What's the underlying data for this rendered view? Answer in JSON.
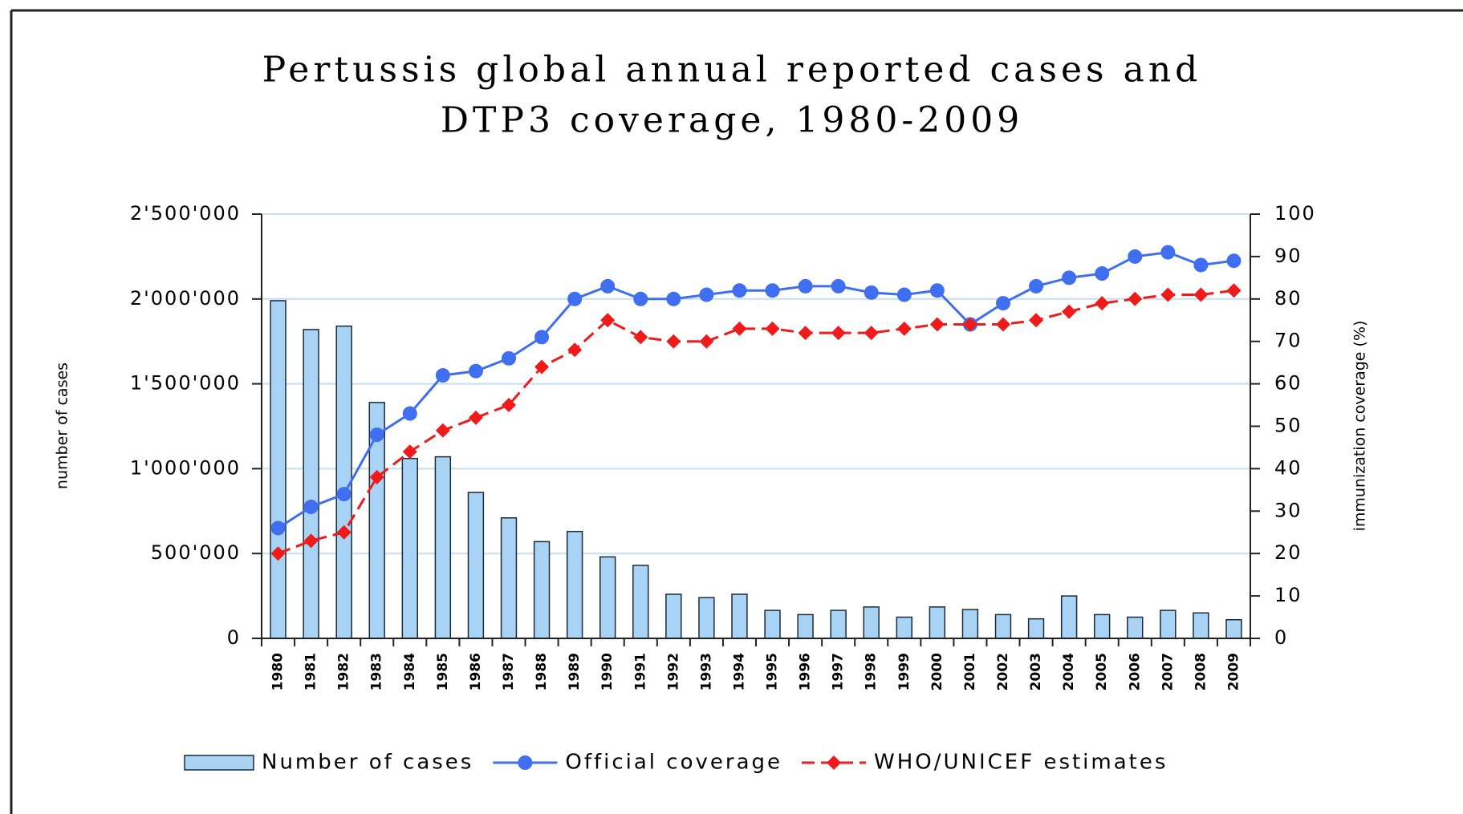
{
  "chart_data": {
    "type": "bar-line",
    "title": [
      "Pertussis global annual reported cases and",
      "DTP3 coverage, 1980-2009"
    ],
    "ylabel": "number of cases",
    "y2label": "immunization coverage (%)",
    "categories": [
      "1980",
      "1981",
      "1982",
      "1983",
      "1984",
      "1985",
      "1986",
      "1987",
      "1988",
      "1989",
      "1990",
      "1991",
      "1992",
      "1993",
      "1994",
      "1995",
      "1996",
      "1997",
      "1998",
      "1999",
      "2000",
      "2001",
      "2002",
      "2003",
      "2004",
      "2005",
      "2006",
      "2007",
      "2008",
      "2009"
    ],
    "series": [
      {
        "name": "Number of cases",
        "type": "bar",
        "axis": "y",
        "color": "#a9d3f5",
        "values": [
          1990000,
          1820000,
          1840000,
          1390000,
          1060000,
          1070000,
          860000,
          710000,
          570000,
          630000,
          480000,
          430000,
          260000,
          240000,
          260000,
          165000,
          140000,
          165000,
          185000,
          125000,
          185000,
          170000,
          140000,
          115000,
          250000,
          140000,
          125000,
          165000,
          150000,
          110000
        ]
      },
      {
        "name": "Official coverage",
        "type": "line",
        "axis": "y2",
        "color": "#3f6ff0",
        "marker": "circle",
        "line_style": "solid",
        "values": [
          26,
          31,
          34,
          48,
          53,
          62,
          63,
          66,
          71,
          80,
          83,
          80,
          80,
          81,
          82,
          82,
          83,
          83,
          81.5,
          81,
          82,
          74,
          79,
          83,
          85,
          86,
          90,
          91,
          88,
          89
        ]
      },
      {
        "name": "WHO/UNICEF estimates",
        "type": "line",
        "axis": "y2",
        "color": "#f01a1a",
        "marker": "diamond",
        "line_style": "dashed",
        "values": [
          20,
          23,
          25,
          38,
          44,
          49,
          52,
          55,
          64,
          68,
          75,
          71,
          70,
          70,
          73,
          73,
          72,
          72,
          72,
          73,
          74,
          74,
          74,
          75,
          77,
          79,
          80,
          81,
          81,
          82
        ]
      }
    ],
    "ylim": [
      0,
      2500000
    ],
    "yticks": [
      {
        "value": 0,
        "label": "0"
      },
      {
        "value": 500000,
        "label": "500'000"
      },
      {
        "value": 1000000,
        "label": "1'000'000"
      },
      {
        "value": 1500000,
        "label": "1'500'000"
      },
      {
        "value": 2000000,
        "label": "2'000'000"
      },
      {
        "value": 2500000,
        "label": "2'500'000"
      }
    ],
    "y2lim": [
      0,
      100
    ],
    "y2ticks": [
      0,
      10,
      20,
      30,
      40,
      50,
      60,
      70,
      80,
      90,
      100
    ],
    "grid": true,
    "legend": "bottom"
  }
}
